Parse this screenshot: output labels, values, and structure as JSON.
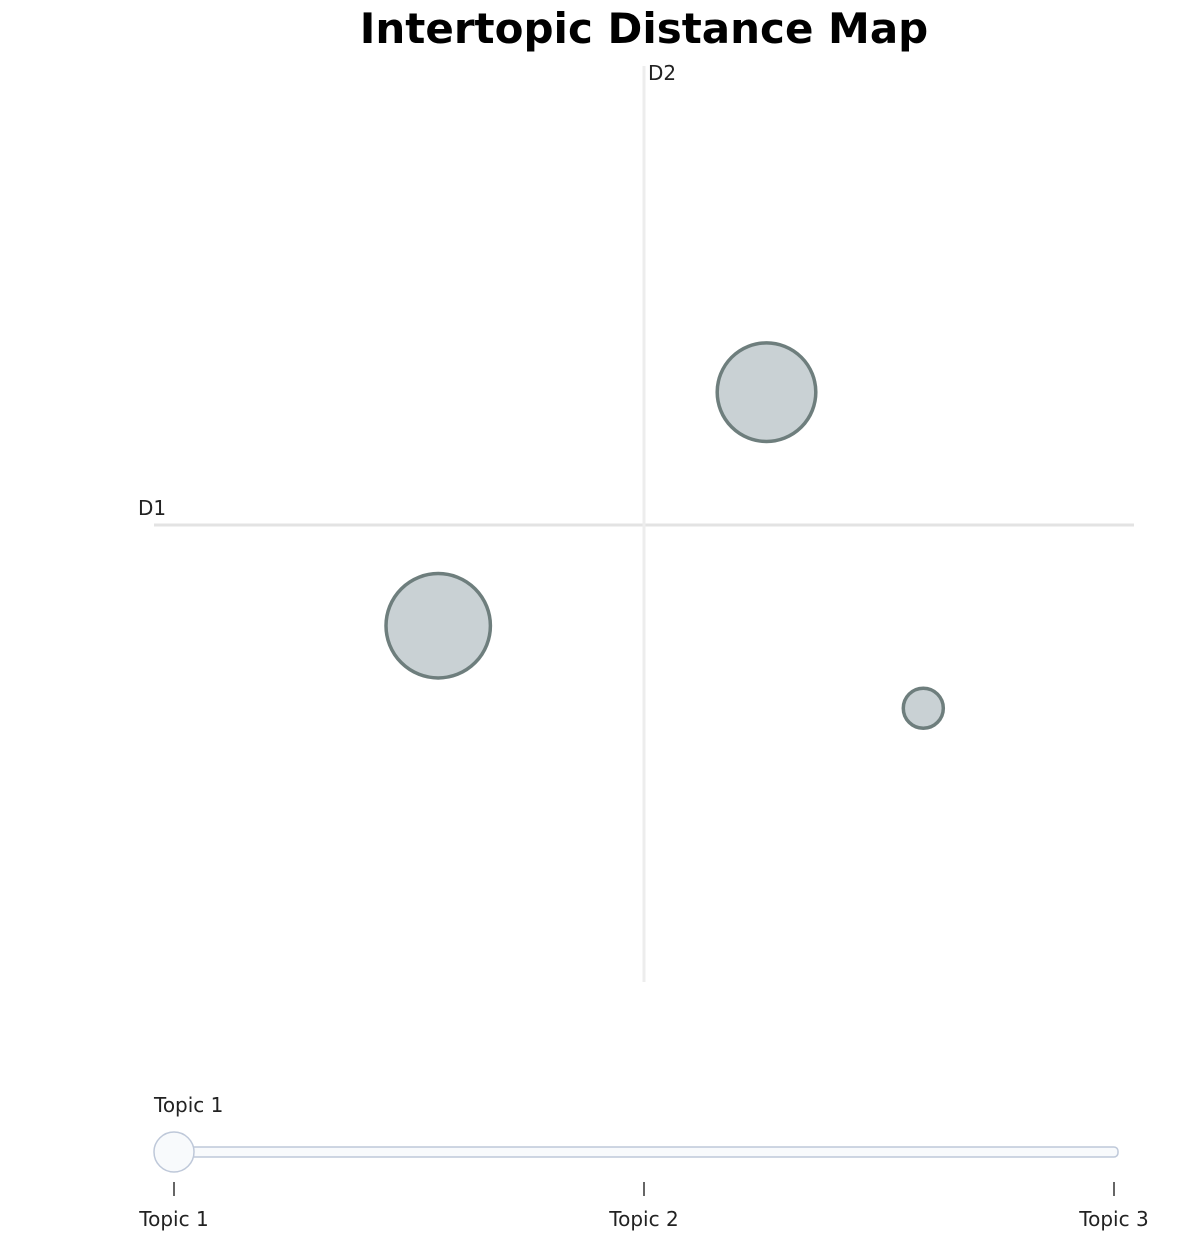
{
  "chart_data": {
    "type": "scatter",
    "title": "Intertopic Distance Map",
    "x_axis_label": "D1",
    "y_axis_label": "D2",
    "xlim": [
      -1,
      1
    ],
    "ylim": [
      -1,
      1
    ],
    "grid": false,
    "points": [
      {
        "x": 0.25,
        "y": 0.29,
        "size": 0.85
      },
      {
        "x": -0.42,
        "y": -0.22,
        "size": 0.9
      },
      {
        "x": 0.57,
        "y": -0.4,
        "size": 0.5
      }
    ],
    "marker_fill": "#c9d1d4",
    "marker_stroke": "#6e7e7d",
    "axis_line_color": "#e3e3e3"
  },
  "slider": {
    "current_label": "Topic 1",
    "current_index": 0,
    "ticks": [
      "Topic 1",
      "Topic 2",
      "Topic 3"
    ]
  }
}
